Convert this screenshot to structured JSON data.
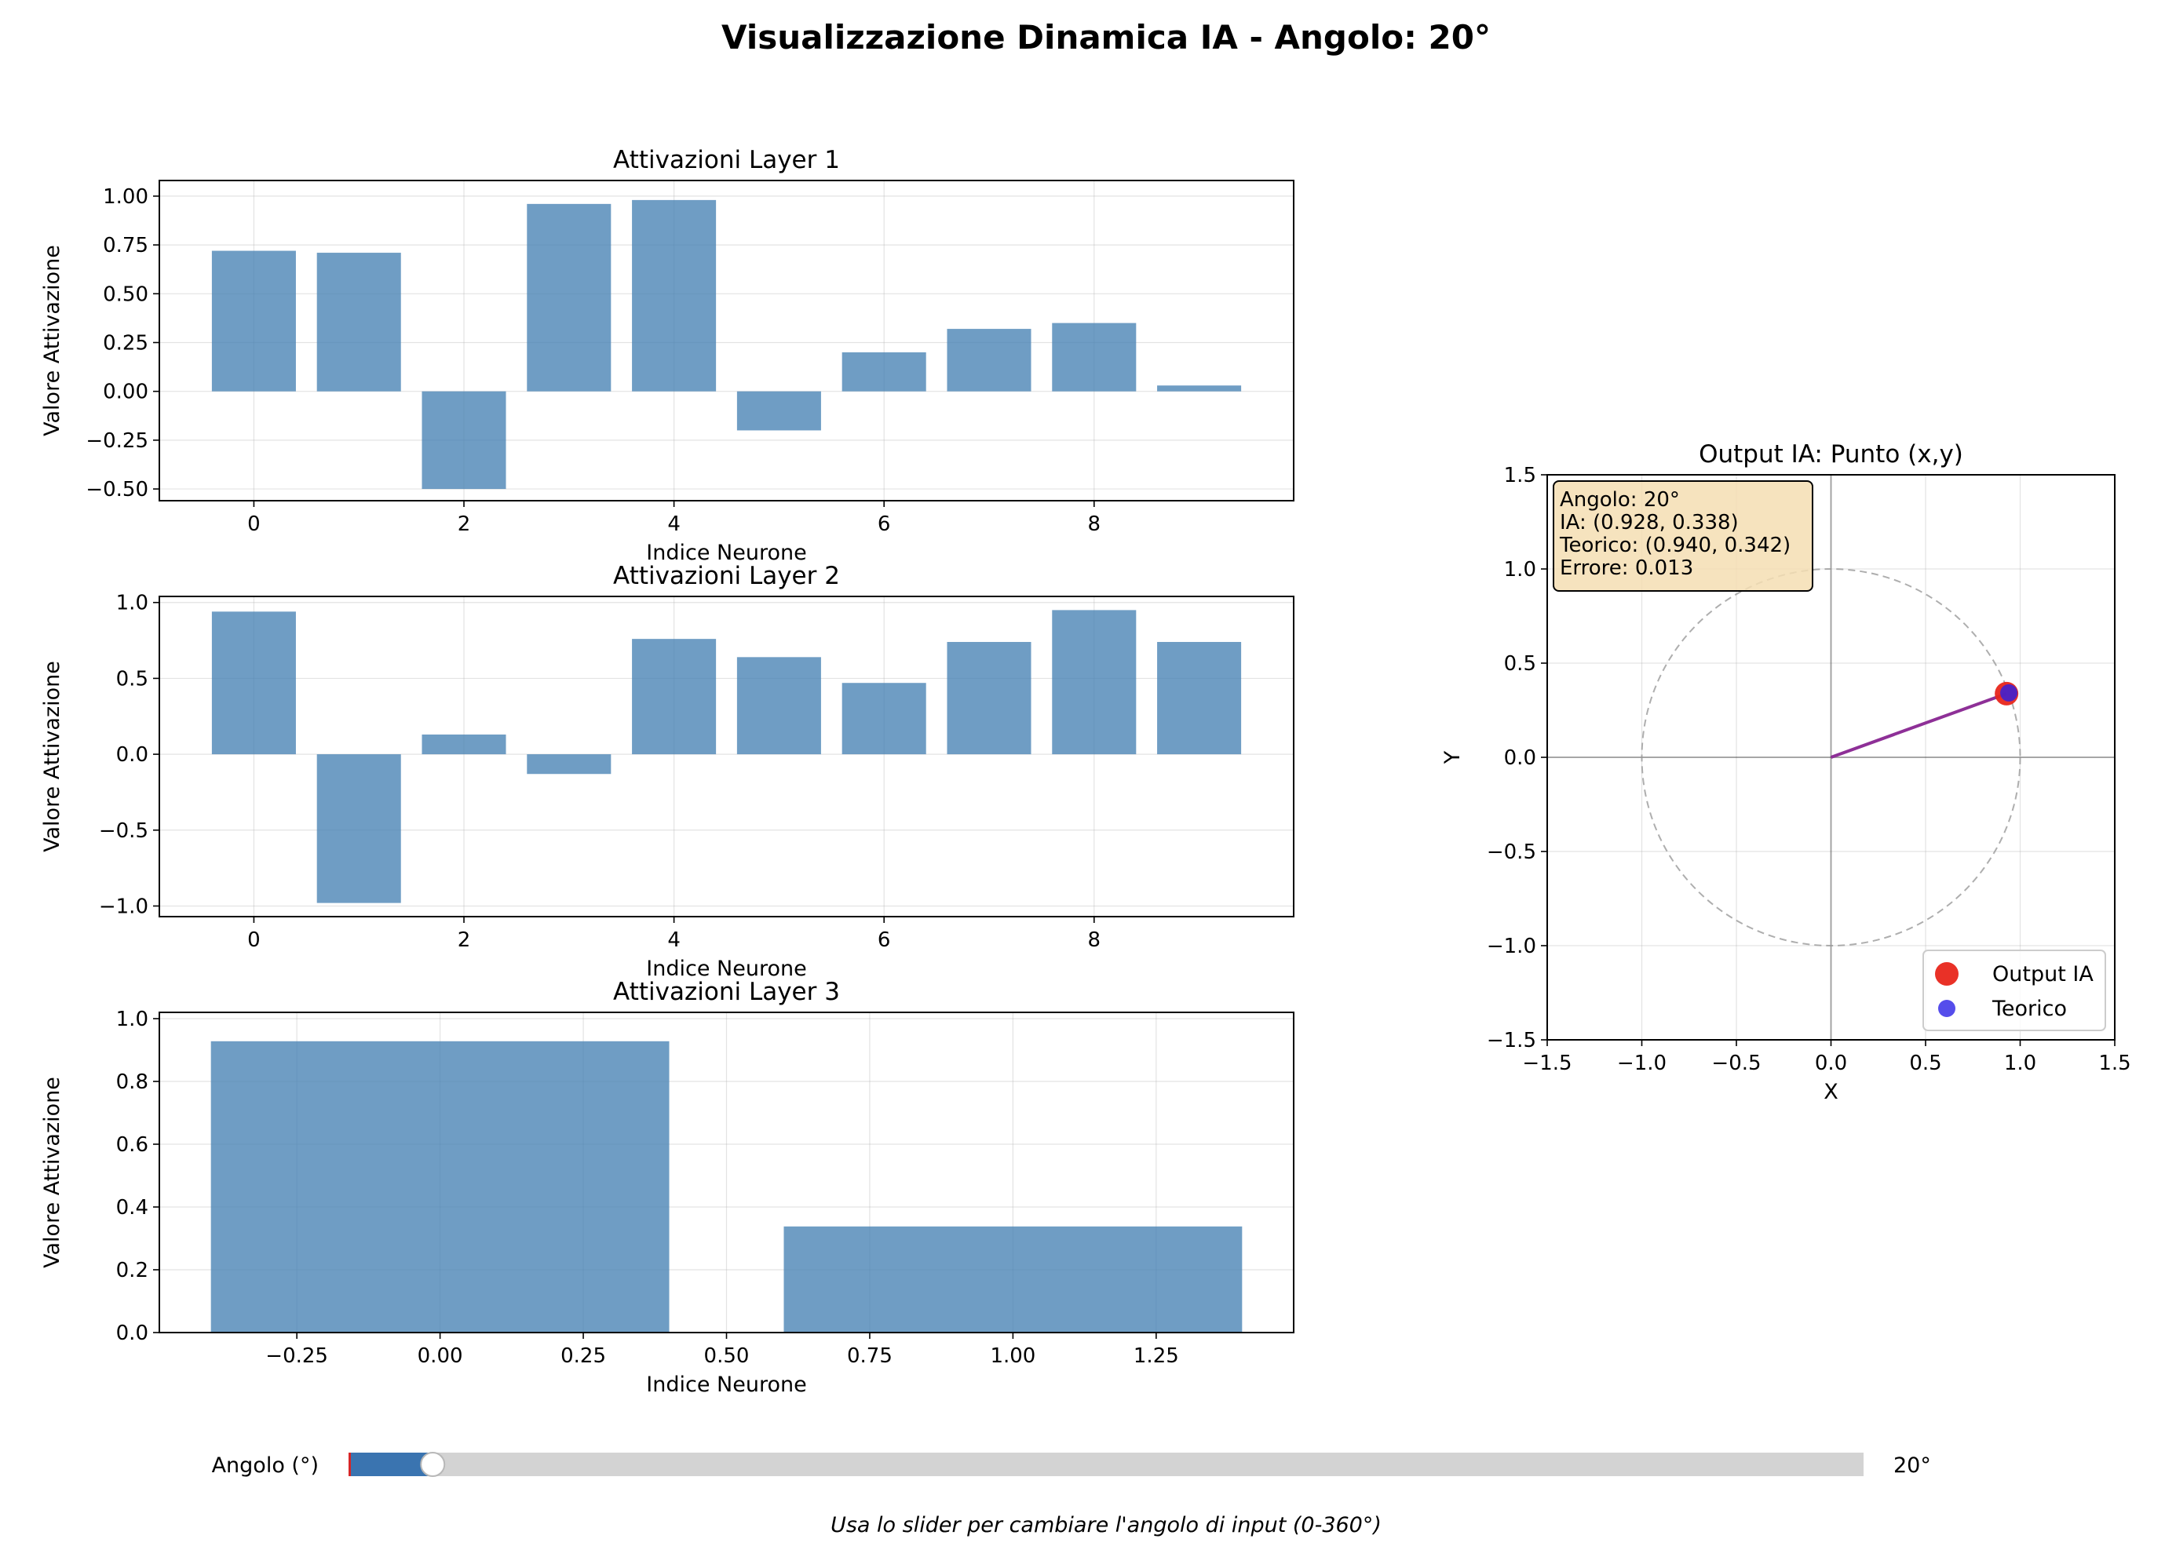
{
  "title": "Visualizzazione Dinamica IA - Angolo: 20°",
  "colors": {
    "bar": "#4682b4",
    "ai_point": "#e8261b",
    "theory_point": "#2a20e6",
    "vector": "#8e3097",
    "slider_fill": "#3a74b0",
    "slider_track": "#d3d3d3",
    "info_box": "#f5deb3"
  },
  "chart_data": [
    {
      "type": "bar",
      "title": "Attivazioni Layer 1",
      "xlabel": "Indice Neurone",
      "ylabel": "Valore Attivazione",
      "x": [
        0,
        1,
        2,
        3,
        4,
        5,
        6,
        7,
        8,
        9
      ],
      "values": [
        0.72,
        0.71,
        -0.5,
        0.96,
        0.98,
        -0.2,
        0.2,
        0.32,
        0.35,
        0.03
      ],
      "xlim": [
        -0.9,
        9.9
      ],
      "ylim": [
        -0.56,
        1.08
      ],
      "xticks": [
        0,
        2,
        4,
        6,
        8
      ],
      "yticks": [
        -0.5,
        -0.25,
        0.0,
        0.25,
        0.5,
        0.75,
        1.0
      ],
      "xtick_labels": [
        "0",
        "2",
        "4",
        "6",
        "8"
      ],
      "ytick_labels": [
        "−0.50",
        "−0.25",
        "0.00",
        "0.25",
        "0.50",
        "0.75",
        "1.00"
      ],
      "grid": true
    },
    {
      "type": "bar",
      "title": "Attivazioni Layer 2",
      "xlabel": "Indice Neurone",
      "ylabel": "Valore Attivazione",
      "x": [
        0,
        1,
        2,
        3,
        4,
        5,
        6,
        7,
        8,
        9
      ],
      "values": [
        0.94,
        -0.98,
        0.13,
        -0.13,
        0.76,
        0.64,
        0.47,
        0.74,
        0.95,
        0.74
      ],
      "xlim": [
        -0.9,
        9.9
      ],
      "ylim": [
        -1.07,
        1.04
      ],
      "xticks": [
        0,
        2,
        4,
        6,
        8
      ],
      "yticks": [
        -1.0,
        -0.5,
        0.0,
        0.5,
        1.0
      ],
      "xtick_labels": [
        "0",
        "2",
        "4",
        "6",
        "8"
      ],
      "ytick_labels": [
        "−1.0",
        "−0.5",
        "0.0",
        "0.5",
        "1.0"
      ],
      "grid": true
    },
    {
      "type": "bar",
      "title": "Attivazioni Layer 3",
      "xlabel": "Indice Neurone",
      "ylabel": "Valore Attivazione",
      "x": [
        0,
        1
      ],
      "values": [
        0.928,
        0.338
      ],
      "xlim": [
        -0.49,
        1.49
      ],
      "ylim": [
        0,
        1.02
      ],
      "xticks": [
        -0.25,
        0.0,
        0.25,
        0.5,
        0.75,
        1.0,
        1.25
      ],
      "yticks": [
        0.0,
        0.2,
        0.4,
        0.6,
        0.8,
        1.0
      ],
      "xtick_labels": [
        "−0.25",
        "0.00",
        "0.25",
        "0.50",
        "0.75",
        "1.00",
        "1.25"
      ],
      "ytick_labels": [
        "0.0",
        "0.2",
        "0.4",
        "0.6",
        "0.8",
        "1.0"
      ],
      "grid": true
    },
    {
      "type": "scatter",
      "title": "Output IA: Punto (x,y)",
      "xlabel": "X",
      "ylabel": "Y",
      "xlim": [
        -1.5,
        1.5
      ],
      "ylim": [
        -1.5,
        1.5
      ],
      "xticks": [
        -1.5,
        -1.0,
        -0.5,
        0.0,
        0.5,
        1.0,
        1.5
      ],
      "yticks": [
        -1.5,
        -1.0,
        -0.5,
        0.0,
        0.5,
        1.0,
        1.5
      ],
      "xtick_labels": [
        "−1.5",
        "−1.0",
        "−0.5",
        "0.0",
        "0.5",
        "1.0",
        "1.5"
      ],
      "ytick_labels": [
        "−1.5",
        "−1.0",
        "−0.5",
        "0.0",
        "0.5",
        "1.0",
        "1.5"
      ],
      "unit_circle_radius": 1.0,
      "series": [
        {
          "name": "Output IA",
          "x": [
            0.928
          ],
          "y": [
            0.338
          ]
        },
        {
          "name": "Teorico",
          "x": [
            0.94
          ],
          "y": [
            0.342
          ]
        }
      ],
      "info_lines": [
        "Angolo: 20°",
        "IA: (0.928, 0.338)",
        "Teorico: (0.940, 0.342)",
        "Errore: 0.013"
      ],
      "legend_position": "lower-right",
      "grid": true
    }
  ],
  "slider": {
    "label": "Angolo (°)",
    "value": 20,
    "min": 0,
    "max": 360,
    "value_text": "20°"
  },
  "hint": "Usa lo slider per cambiare l'angolo di input (0-360°)"
}
